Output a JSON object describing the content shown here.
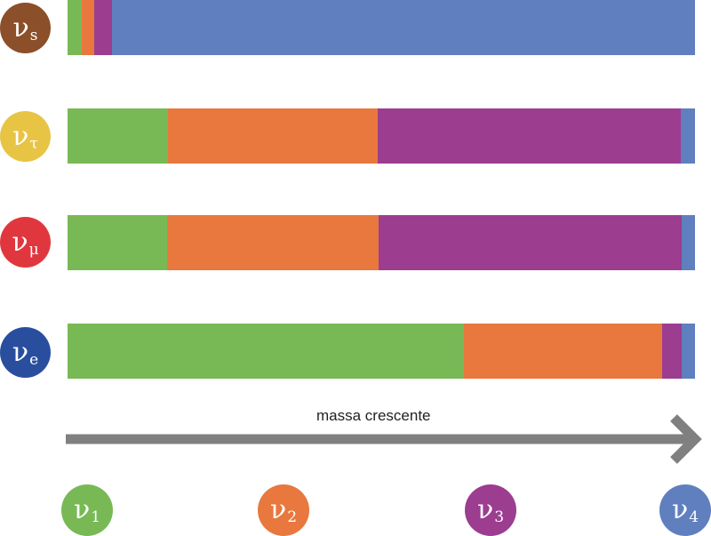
{
  "colors": {
    "nu1": "#78b956",
    "nu2": "#e8783e",
    "nu3": "#9c3d90",
    "nu4": "#5f7fbf",
    "nu_s": "#8b4f2a",
    "nu_tau": "#e8c445",
    "nu_mu": "#e0373f",
    "nu_e": "#2a4e9e",
    "arrow": "#808080"
  },
  "flavors": [
    {
      "symbol": "ν",
      "sub": "s"
    },
    {
      "symbol": "ν",
      "sub": "τ"
    },
    {
      "symbol": "ν",
      "sub": "μ"
    },
    {
      "symbol": "ν",
      "sub": "e"
    }
  ],
  "mass_states": [
    {
      "symbol": "ν",
      "sub": "1"
    },
    {
      "symbol": "ν",
      "sub": "2"
    },
    {
      "symbol": "ν",
      "sub": "3"
    },
    {
      "symbol": "ν",
      "sub": "4"
    }
  ],
  "arrow_label": "massa crescente",
  "chart_data": {
    "type": "bar",
    "orientation": "horizontal",
    "stacked": true,
    "normalized": true,
    "categories": [
      "νs",
      "ντ",
      "νμ",
      "νe"
    ],
    "series": [
      {
        "name": "ν1",
        "values": [
          0.022,
          0.16,
          0.159,
          0.632
        ]
      },
      {
        "name": "ν2",
        "values": [
          0.02,
          0.335,
          0.337,
          0.316
        ]
      },
      {
        "name": "ν3",
        "values": [
          0.029,
          0.482,
          0.483,
          0.031
        ]
      },
      {
        "name": "ν4",
        "values": [
          0.929,
          0.023,
          0.021,
          0.021
        ]
      }
    ]
  }
}
